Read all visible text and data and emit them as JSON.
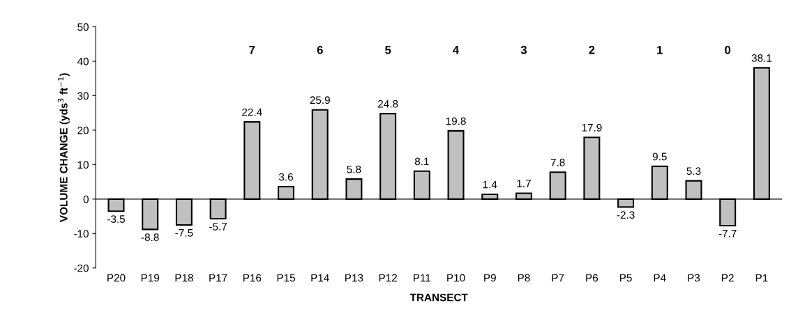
{
  "chart_data": {
    "type": "bar",
    "xlabel": "TRANSECT",
    "ylabel": "VOLUME CHANGE (yds$^{3}$ ft$^{−1}$)",
    "categories": [
      "P20",
      "P19",
      "P18",
      "P17",
      "P16",
      "P15",
      "P14",
      "P13",
      "P12",
      "P11",
      "P10",
      "P9",
      "P8",
      "P7",
      "P6",
      "P5",
      "P4",
      "P3",
      "P2",
      "P1"
    ],
    "values": [
      -3.5,
      -8.8,
      -7.5,
      -5.7,
      22.4,
      3.6,
      25.9,
      5.8,
      24.8,
      8.1,
      19.8,
      1.4,
      1.7,
      7.8,
      17.9,
      -2.3,
      9.5,
      5.3,
      -7.7,
      38.1
    ],
    "color": "#c0c0c0",
    "data_labels": true,
    "ylim": [
      -20,
      50
    ],
    "yticks": [
      -20,
      -10,
      0,
      10,
      20,
      30,
      40,
      50
    ],
    "grid": false,
    "legend": false,
    "ref_lines": [
      {
        "axis": "y",
        "value": 0,
        "color": "#000000"
      }
    ],
    "annotations": [
      "7",
      "6",
      "5",
      "4",
      "3",
      "2",
      "1",
      "0"
    ]
  }
}
